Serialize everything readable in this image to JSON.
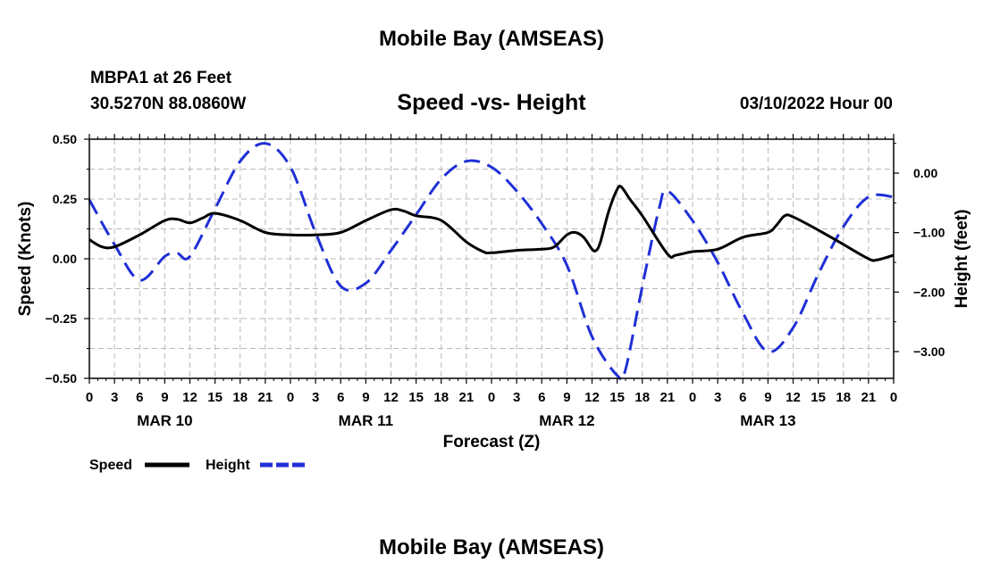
{
  "header": {
    "title": "Mobile Bay (AMSEAS)",
    "station": "MBPA1 at 26 Feet",
    "coordinates": "30.5270N  88.0860W",
    "subtitle": "Speed -vs- Height",
    "datetime": "03/10/2022 Hour 00"
  },
  "footer": {
    "title": "Mobile Bay (AMSEAS)"
  },
  "chart_data": {
    "type": "line",
    "title": "Speed -vs- Height",
    "xlabel": "Forecast (Z)",
    "ylabel": "Speed (Knots)",
    "y2label": "Height (feet)",
    "grid": true,
    "legend_position": "bottom-left",
    "x_range": [
      0,
      96
    ],
    "x_tick_labels": [
      "0",
      "3",
      "6",
      "9",
      "12",
      "15",
      "18",
      "21",
      "0",
      "3",
      "6",
      "9",
      "12",
      "15",
      "18",
      "21",
      "0",
      "3",
      "6",
      "9",
      "12",
      "15",
      "18",
      "21",
      "0",
      "3",
      "6",
      "9",
      "12",
      "15",
      "18",
      "21",
      "0"
    ],
    "day_labels": [
      {
        "label": "MAR 10",
        "hour": 9
      },
      {
        "label": "MAR 11",
        "hour": 33
      },
      {
        "label": "MAR 12",
        "hour": 57
      },
      {
        "label": "MAR 13",
        "hour": 81
      }
    ],
    "y_left": {
      "range": [
        -0.5,
        0.5
      ],
      "ticks": [
        "0.50",
        "0.25",
        "0.00",
        "−0.25",
        "−0.50"
      ],
      "tick_values": [
        0.5,
        0.25,
        0,
        -0.25,
        -0.5
      ]
    },
    "y_right": {
      "range": [
        -3.45,
        0.57
      ],
      "ticks": [
        "0.00",
        "−1.00",
        "−2.00",
        "−3.00"
      ],
      "tick_values": [
        0,
        -1,
        -2,
        -3
      ]
    },
    "series": [
      {
        "name": "Speed",
        "axis": "left",
        "color": "#000000",
        "dash": "solid",
        "points": [
          [
            0,
            0.08
          ],
          [
            1.5,
            0.05
          ],
          [
            3,
            0.05
          ],
          [
            6,
            0.1
          ],
          [
            9,
            0.16
          ],
          [
            10.5,
            0.165
          ],
          [
            12,
            0.15
          ],
          [
            13.5,
            0.17
          ],
          [
            15,
            0.19
          ],
          [
            18,
            0.16
          ],
          [
            21,
            0.11
          ],
          [
            24,
            0.1
          ],
          [
            27,
            0.1
          ],
          [
            30,
            0.11
          ],
          [
            33,
            0.16
          ],
          [
            36,
            0.205
          ],
          [
            37.5,
            0.2
          ],
          [
            39,
            0.18
          ],
          [
            42,
            0.16
          ],
          [
            45,
            0.07
          ],
          [
            47,
            0.03
          ],
          [
            48,
            0.025
          ],
          [
            51,
            0.035
          ],
          [
            54,
            0.04
          ],
          [
            55.5,
            0.05
          ],
          [
            57,
            0.1
          ],
          [
            58,
            0.11
          ],
          [
            59,
            0.09
          ],
          [
            60,
            0.04
          ],
          [
            60.5,
            0.035
          ],
          [
            61,
            0.07
          ],
          [
            62,
            0.2
          ],
          [
            63,
            0.29
          ],
          [
            63.5,
            0.3
          ],
          [
            64.5,
            0.25
          ],
          [
            66,
            0.18
          ],
          [
            69,
            0.02
          ],
          [
            70,
            0.015
          ],
          [
            72,
            0.03
          ],
          [
            75,
            0.04
          ],
          [
            78,
            0.09
          ],
          [
            81,
            0.11
          ],
          [
            82,
            0.14
          ],
          [
            83,
            0.18
          ],
          [
            84,
            0.175
          ],
          [
            87,
            0.12
          ],
          [
            90,
            0.06
          ],
          [
            93,
            0.0
          ],
          [
            94,
            -0.005
          ],
          [
            96,
            0.015
          ]
        ]
      },
      {
        "name": "Height",
        "axis": "right",
        "color": "#1f2fd6",
        "dash": "dashed",
        "points": [
          [
            0,
            -0.45
          ],
          [
            3,
            -1.2
          ],
          [
            6,
            -1.8
          ],
          [
            9,
            -1.4
          ],
          [
            10.5,
            -1.35
          ],
          [
            12,
            -1.4
          ],
          [
            15,
            -0.6
          ],
          [
            18,
            0.2
          ],
          [
            21,
            0.5
          ],
          [
            24,
            0.1
          ],
          [
            27,
            -1.0
          ],
          [
            30,
            -1.9
          ],
          [
            33,
            -1.85
          ],
          [
            36,
            -1.3
          ],
          [
            39,
            -0.7
          ],
          [
            42,
            -0.1
          ],
          [
            45,
            0.2
          ],
          [
            48,
            0.1
          ],
          [
            51,
            -0.3
          ],
          [
            54,
            -0.85
          ],
          [
            57,
            -1.55
          ],
          [
            60,
            -2.75
          ],
          [
            63,
            -3.4
          ],
          [
            64,
            -3.3
          ],
          [
            66,
            -1.9
          ],
          [
            68,
            -0.6
          ],
          [
            69,
            -0.3
          ],
          [
            72,
            -0.8
          ],
          [
            75,
            -1.5
          ],
          [
            78,
            -2.35
          ],
          [
            81,
            -3.0
          ],
          [
            84,
            -2.6
          ],
          [
            87,
            -1.7
          ],
          [
            90,
            -0.9
          ],
          [
            93,
            -0.4
          ],
          [
            96,
            -0.4
          ]
        ]
      }
    ]
  }
}
